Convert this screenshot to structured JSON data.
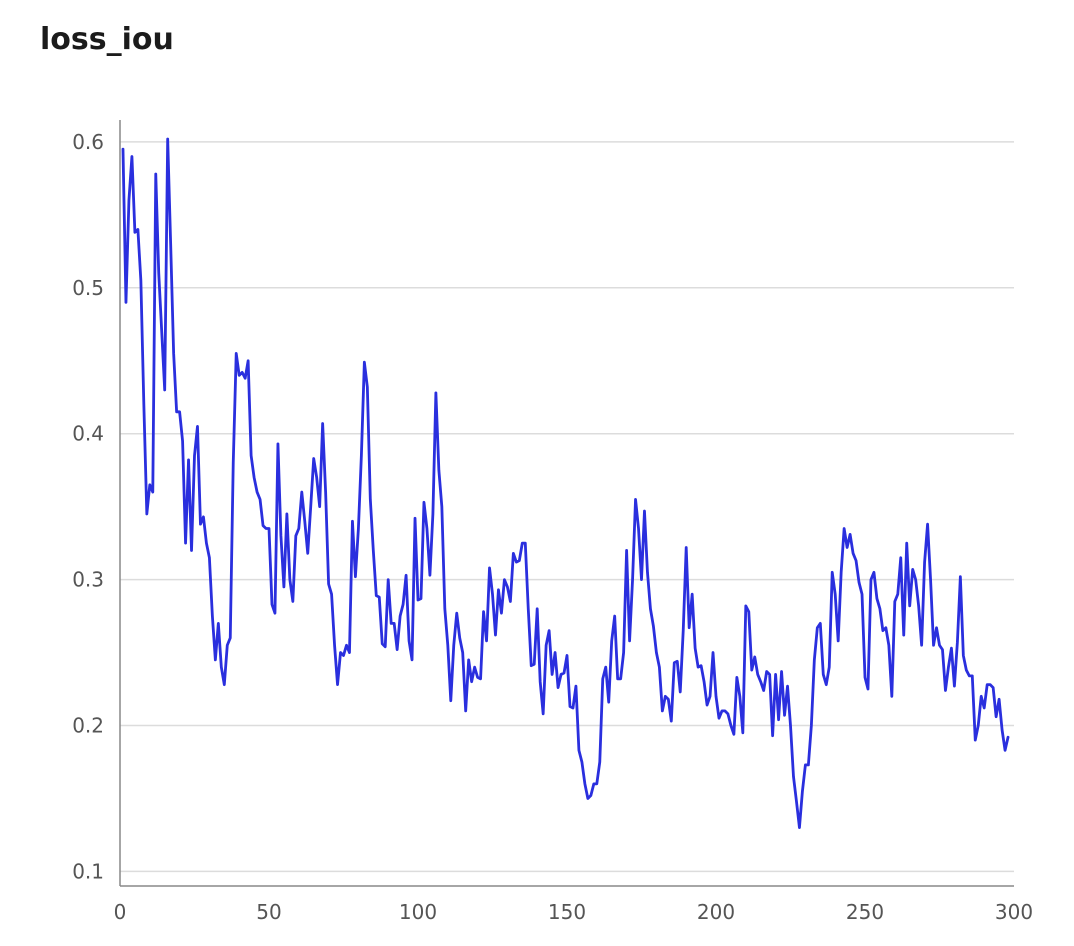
{
  "chart_data": {
    "type": "line",
    "title": "loss_iou",
    "xlabel": "",
    "ylabel": "",
    "xlim": [
      0,
      300
    ],
    "ylim": [
      0.09,
      0.615
    ],
    "xticks": [
      0,
      50,
      100,
      150,
      200,
      250,
      300
    ],
    "yticks": [
      0.1,
      0.2,
      0.3,
      0.4,
      0.5,
      0.6
    ],
    "xtick_labels": [
      "0",
      "50",
      "100",
      "150",
      "200",
      "250",
      "300"
    ],
    "ytick_labels": [
      "0.1",
      "0.2",
      "0.3",
      "0.4",
      "0.5",
      "0.6"
    ],
    "grid": "horizontal",
    "colors": {
      "line": "#2a2fde",
      "grid": "#dcdcdc",
      "axis": "#888888",
      "tick_text": "#555555"
    },
    "series": [
      {
        "points": [
          [
            1,
            0.595
          ],
          [
            2,
            0.49
          ],
          [
            3,
            0.56
          ],
          [
            4,
            0.59
          ],
          [
            5,
            0.538
          ],
          [
            6,
            0.54
          ],
          [
            7,
            0.505
          ],
          [
            8,
            0.42
          ],
          [
            9,
            0.345
          ],
          [
            10,
            0.365
          ],
          [
            11,
            0.36
          ],
          [
            12,
            0.578
          ],
          [
            13,
            0.51
          ],
          [
            14,
            0.47
          ],
          [
            15,
            0.43
          ],
          [
            16,
            0.602
          ],
          [
            17,
            0.53
          ],
          [
            18,
            0.455
          ],
          [
            19,
            0.415
          ],
          [
            20,
            0.415
          ],
          [
            21,
            0.395
          ],
          [
            22,
            0.325
          ],
          [
            23,
            0.382
          ],
          [
            24,
            0.32
          ],
          [
            25,
            0.385
          ],
          [
            26,
            0.405
          ],
          [
            27,
            0.338
          ],
          [
            28,
            0.343
          ],
          [
            29,
            0.325
          ],
          [
            30,
            0.315
          ],
          [
            31,
            0.275
          ],
          [
            32,
            0.245
          ],
          [
            33,
            0.27
          ],
          [
            34,
            0.24
          ],
          [
            35,
            0.228
          ],
          [
            36,
            0.255
          ],
          [
            37,
            0.26
          ],
          [
            38,
            0.38
          ],
          [
            39,
            0.455
          ],
          [
            40,
            0.44
          ],
          [
            41,
            0.442
          ],
          [
            42,
            0.438
          ],
          [
            43,
            0.45
          ],
          [
            44,
            0.385
          ],
          [
            45,
            0.37
          ],
          [
            46,
            0.36
          ],
          [
            47,
            0.355
          ],
          [
            48,
            0.337
          ],
          [
            49,
            0.335
          ],
          [
            50,
            0.335
          ],
          [
            51,
            0.283
          ],
          [
            52,
            0.277
          ],
          [
            53,
            0.393
          ],
          [
            54,
            0.33
          ],
          [
            55,
            0.295
          ],
          [
            56,
            0.345
          ],
          [
            57,
            0.3
          ],
          [
            58,
            0.285
          ],
          [
            59,
            0.33
          ],
          [
            60,
            0.335
          ],
          [
            61,
            0.36
          ],
          [
            62,
            0.34
          ],
          [
            63,
            0.318
          ],
          [
            64,
            0.35
          ],
          [
            65,
            0.383
          ],
          [
            66,
            0.37
          ],
          [
            67,
            0.35
          ],
          [
            68,
            0.407
          ],
          [
            69,
            0.36
          ],
          [
            70,
            0.297
          ],
          [
            71,
            0.29
          ],
          [
            72,
            0.255
          ],
          [
            73,
            0.228
          ],
          [
            74,
            0.25
          ],
          [
            75,
            0.248
          ],
          [
            76,
            0.255
          ],
          [
            77,
            0.25
          ],
          [
            78,
            0.34
          ],
          [
            79,
            0.302
          ],
          [
            80,
            0.335
          ],
          [
            81,
            0.385
          ],
          [
            82,
            0.449
          ],
          [
            83,
            0.432
          ],
          [
            84,
            0.355
          ],
          [
            85,
            0.32
          ],
          [
            86,
            0.289
          ],
          [
            87,
            0.288
          ],
          [
            88,
            0.256
          ],
          [
            89,
            0.254
          ],
          [
            90,
            0.3
          ],
          [
            91,
            0.27
          ],
          [
            92,
            0.27
          ],
          [
            93,
            0.252
          ],
          [
            94,
            0.275
          ],
          [
            95,
            0.283
          ],
          [
            96,
            0.303
          ],
          [
            97,
            0.258
          ],
          [
            98,
            0.245
          ],
          [
            99,
            0.342
          ],
          [
            100,
            0.286
          ],
          [
            101,
            0.287
          ],
          [
            102,
            0.353
          ],
          [
            103,
            0.335
          ],
          [
            104,
            0.303
          ],
          [
            105,
            0.345
          ],
          [
            106,
            0.428
          ],
          [
            107,
            0.375
          ],
          [
            108,
            0.35
          ],
          [
            109,
            0.28
          ],
          [
            110,
            0.255
          ],
          [
            111,
            0.217
          ],
          [
            112,
            0.255
          ],
          [
            113,
            0.277
          ],
          [
            114,
            0.26
          ],
          [
            115,
            0.25
          ],
          [
            116,
            0.21
          ],
          [
            117,
            0.245
          ],
          [
            118,
            0.23
          ],
          [
            119,
            0.24
          ],
          [
            120,
            0.233
          ],
          [
            121,
            0.232
          ],
          [
            122,
            0.278
          ],
          [
            123,
            0.258
          ],
          [
            124,
            0.308
          ],
          [
            125,
            0.29
          ],
          [
            126,
            0.262
          ],
          [
            127,
            0.293
          ],
          [
            128,
            0.277
          ],
          [
            129,
            0.3
          ],
          [
            130,
            0.295
          ],
          [
            131,
            0.285
          ],
          [
            132,
            0.318
          ],
          [
            133,
            0.312
          ],
          [
            134,
            0.313
          ],
          [
            135,
            0.325
          ],
          [
            136,
            0.325
          ],
          [
            137,
            0.28
          ],
          [
            138,
            0.241
          ],
          [
            139,
            0.242
          ],
          [
            140,
            0.28
          ],
          [
            141,
            0.23
          ],
          [
            142,
            0.208
          ],
          [
            143,
            0.255
          ],
          [
            144,
            0.265
          ],
          [
            145,
            0.235
          ],
          [
            146,
            0.25
          ],
          [
            147,
            0.226
          ],
          [
            148,
            0.235
          ],
          [
            149,
            0.236
          ],
          [
            150,
            0.248
          ],
          [
            151,
            0.213
          ],
          [
            152,
            0.212
          ],
          [
            153,
            0.227
          ],
          [
            154,
            0.183
          ],
          [
            155,
            0.175
          ],
          [
            156,
            0.16
          ],
          [
            157,
            0.15
          ],
          [
            158,
            0.152
          ],
          [
            159,
            0.16
          ],
          [
            160,
            0.16
          ],
          [
            161,
            0.175
          ],
          [
            162,
            0.232
          ],
          [
            163,
            0.24
          ],
          [
            164,
            0.216
          ],
          [
            165,
            0.258
          ],
          [
            166,
            0.275
          ],
          [
            167,
            0.232
          ],
          [
            168,
            0.232
          ],
          [
            169,
            0.25
          ],
          [
            170,
            0.32
          ],
          [
            171,
            0.258
          ],
          [
            172,
            0.3
          ],
          [
            173,
            0.355
          ],
          [
            174,
            0.335
          ],
          [
            175,
            0.3
          ],
          [
            176,
            0.347
          ],
          [
            177,
            0.305
          ],
          [
            178,
            0.28
          ],
          [
            179,
            0.268
          ],
          [
            180,
            0.25
          ],
          [
            181,
            0.24
          ],
          [
            182,
            0.21
          ],
          [
            183,
            0.22
          ],
          [
            184,
            0.218
          ],
          [
            185,
            0.203
          ],
          [
            186,
            0.243
          ],
          [
            187,
            0.244
          ],
          [
            188,
            0.223
          ],
          [
            189,
            0.265
          ],
          [
            190,
            0.322
          ],
          [
            191,
            0.267
          ],
          [
            192,
            0.29
          ],
          [
            193,
            0.253
          ],
          [
            194,
            0.24
          ],
          [
            195,
            0.241
          ],
          [
            196,
            0.23
          ],
          [
            197,
            0.214
          ],
          [
            198,
            0.22
          ],
          [
            199,
            0.25
          ],
          [
            200,
            0.22
          ],
          [
            201,
            0.205
          ],
          [
            202,
            0.21
          ],
          [
            203,
            0.21
          ],
          [
            204,
            0.208
          ],
          [
            205,
            0.2
          ],
          [
            206,
            0.194
          ],
          [
            207,
            0.233
          ],
          [
            208,
            0.22
          ],
          [
            209,
            0.195
          ],
          [
            210,
            0.282
          ],
          [
            211,
            0.278
          ],
          [
            212,
            0.238
          ],
          [
            213,
            0.247
          ],
          [
            214,
            0.235
          ],
          [
            215,
            0.23
          ],
          [
            216,
            0.224
          ],
          [
            217,
            0.237
          ],
          [
            218,
            0.235
          ],
          [
            219,
            0.193
          ],
          [
            220,
            0.235
          ],
          [
            221,
            0.204
          ],
          [
            222,
            0.237
          ],
          [
            223,
            0.207
          ],
          [
            224,
            0.227
          ],
          [
            225,
            0.2
          ],
          [
            226,
            0.165
          ],
          [
            227,
            0.148
          ],
          [
            228,
            0.13
          ],
          [
            229,
            0.155
          ],
          [
            230,
            0.173
          ],
          [
            231,
            0.173
          ],
          [
            232,
            0.2
          ],
          [
            233,
            0.245
          ],
          [
            234,
            0.267
          ],
          [
            235,
            0.27
          ],
          [
            236,
            0.235
          ],
          [
            237,
            0.228
          ],
          [
            238,
            0.24
          ],
          [
            239,
            0.305
          ],
          [
            240,
            0.29
          ],
          [
            241,
            0.258
          ],
          [
            242,
            0.305
          ],
          [
            243,
            0.335
          ],
          [
            244,
            0.322
          ],
          [
            245,
            0.331
          ],
          [
            246,
            0.318
          ],
          [
            247,
            0.313
          ],
          [
            248,
            0.298
          ],
          [
            249,
            0.29
          ],
          [
            250,
            0.233
          ],
          [
            251,
            0.225
          ],
          [
            252,
            0.3
          ],
          [
            253,
            0.305
          ],
          [
            254,
            0.287
          ],
          [
            255,
            0.28
          ],
          [
            256,
            0.265
          ],
          [
            257,
            0.267
          ],
          [
            258,
            0.255
          ],
          [
            259,
            0.22
          ],
          [
            260,
            0.285
          ],
          [
            261,
            0.29
          ],
          [
            262,
            0.315
          ],
          [
            263,
            0.262
          ],
          [
            264,
            0.325
          ],
          [
            265,
            0.282
          ],
          [
            266,
            0.307
          ],
          [
            267,
            0.3
          ],
          [
            268,
            0.282
          ],
          [
            269,
            0.255
          ],
          [
            270,
            0.312
          ],
          [
            271,
            0.338
          ],
          [
            272,
            0.3
          ],
          [
            273,
            0.255
          ],
          [
            274,
            0.267
          ],
          [
            275,
            0.255
          ],
          [
            276,
            0.252
          ],
          [
            277,
            0.224
          ],
          [
            278,
            0.24
          ],
          [
            279,
            0.253
          ],
          [
            280,
            0.227
          ],
          [
            281,
            0.257
          ],
          [
            282,
            0.302
          ],
          [
            283,
            0.248
          ],
          [
            284,
            0.238
          ],
          [
            285,
            0.234
          ],
          [
            286,
            0.234
          ],
          [
            287,
            0.19
          ],
          [
            288,
            0.2
          ],
          [
            289,
            0.22
          ],
          [
            290,
            0.212
          ],
          [
            291,
            0.228
          ],
          [
            292,
            0.228
          ],
          [
            293,
            0.226
          ],
          [
            294,
            0.206
          ],
          [
            295,
            0.218
          ],
          [
            296,
            0.197
          ],
          [
            297,
            0.183
          ],
          [
            298,
            0.192
          ]
        ]
      }
    ]
  }
}
